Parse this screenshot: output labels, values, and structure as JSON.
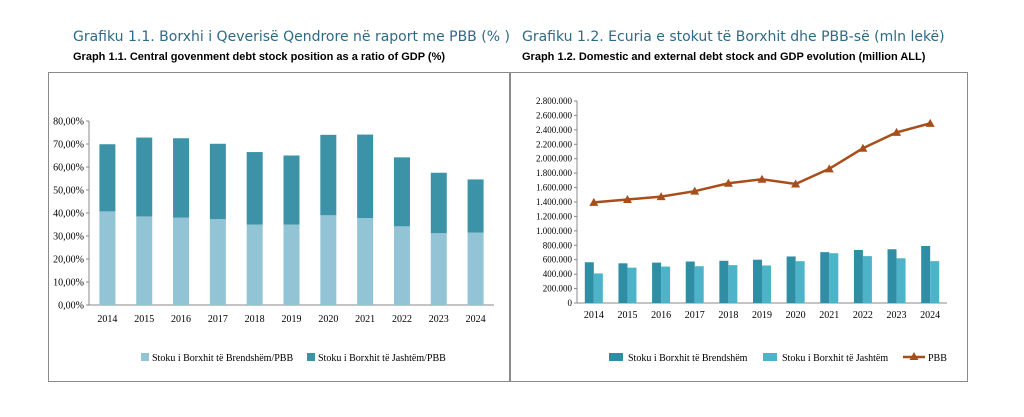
{
  "left": {
    "title": "Grafiku 1.1. Borxhi i Qeverisë Qendrore në raport me PBB (% )",
    "subtitle": "Graph 1.1. Central govenment debt stock position as a ratio of GDP (%)"
  },
  "right": {
    "title": "Grafiku 1.2. Ecuria e stokut të Borxhit dhe PBB-së (mln lekë)",
    "subtitle": "Graph 1.2. Domestic and external debt stock and GDP evolution (million  ALL)"
  },
  "chart_data": [
    {
      "type": "bar",
      "stacked": true,
      "categories": [
        "2014",
        "2015",
        "2016",
        "2017",
        "2018",
        "2019",
        "2020",
        "2021",
        "2022",
        "2023",
        "2024"
      ],
      "series": [
        {
          "name": "Stoku i Borxhit të Brendshëm/PBB",
          "color": "#93c4d5",
          "values": [
            40.7,
            38.5,
            38.0,
            37.3,
            35.0,
            35.0,
            39.0,
            37.8,
            34.2,
            31.2,
            31.5
          ]
        },
        {
          "name": "Stoku i Borxhit të Jashtëm/PBB",
          "color": "#3c93a8",
          "values": [
            29.2,
            34.3,
            34.5,
            32.8,
            31.5,
            30.0,
            35.0,
            36.3,
            30.0,
            26.3,
            23.1
          ]
        }
      ],
      "ylim": [
        0,
        80
      ],
      "yticks": [
        "0,00%",
        "10,00%",
        "20,00%",
        "30,00%",
        "40,00%",
        "50,00%",
        "60,00%",
        "70,00%",
        "80,00%"
      ],
      "legend": "bottom",
      "grid": false
    },
    {
      "type": "bar+line",
      "categories": [
        "2014",
        "2015",
        "2016",
        "2017",
        "2018",
        "2019",
        "2020",
        "2021",
        "2022",
        "2023",
        "2024"
      ],
      "series": [
        {
          "name": "Stoku i Borxhit të Brendshëm",
          "type": "bar",
          "color": "#2f8ea3",
          "values": [
            565,
            550,
            560,
            575,
            585,
            600,
            645,
            705,
            735,
            745,
            790
          ]
        },
        {
          "name": "Stoku i Borxhit të Jashtëm",
          "type": "bar",
          "color": "#4db3c8",
          "values": [
            410,
            490,
            505,
            510,
            525,
            520,
            580,
            690,
            650,
            620,
            580
          ]
        },
        {
          "name": "PBB",
          "type": "line",
          "color": "#a84e1b",
          "values": [
            1395,
            1435,
            1475,
            1550,
            1660,
            1715,
            1650,
            1860,
            2145,
            2365,
            2490
          ]
        }
      ],
      "ylim": [
        0,
        2800
      ],
      "yticks": [
        "0",
        "200.000",
        "400.000",
        "600.000",
        "800.000",
        "1.000.000",
        "1.200.000",
        "1.400.000",
        "1.600.000",
        "1.800.000",
        "2.000.000",
        "2.200.000",
        "2.400.000",
        "2.600.000",
        "2.800.000"
      ],
      "legend": "bottom",
      "grid": false
    }
  ]
}
